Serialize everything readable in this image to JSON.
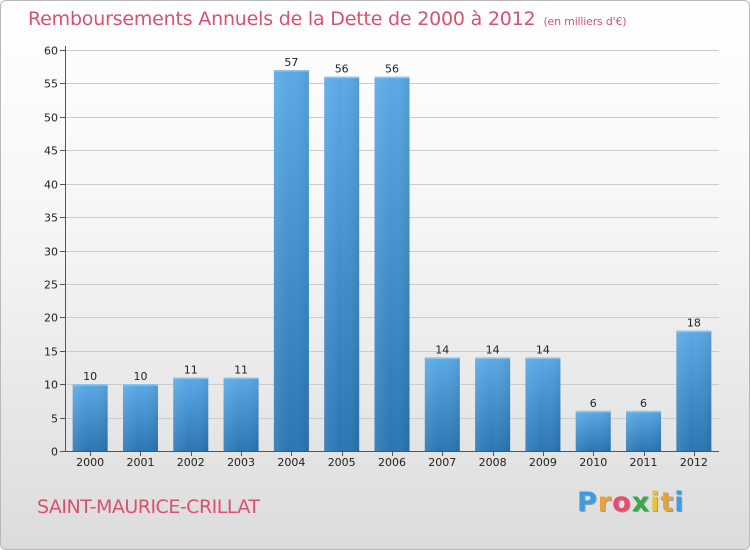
{
  "chart_data": {
    "type": "bar",
    "title": "Remboursements Annuels de la Dette de 2000 à 2012",
    "subtitle": "(en milliers d'€)",
    "categories": [
      "2000",
      "2001",
      "2002",
      "2003",
      "2004",
      "2005",
      "2006",
      "2007",
      "2008",
      "2009",
      "2010",
      "2011",
      "2012"
    ],
    "values": [
      10,
      10,
      11,
      11,
      57,
      56,
      56,
      14,
      14,
      14,
      6,
      6,
      18
    ],
    "ylim": [
      0,
      60
    ],
    "yticks": [
      0,
      5,
      10,
      15,
      20,
      25,
      30,
      35,
      40,
      45,
      50,
      55,
      60
    ],
    "xlabel": "",
    "ylabel": "",
    "grid": true,
    "bar_color_top": "#5aa9e6",
    "bar_color_bottom": "#2a76b4"
  },
  "footer": {
    "town": "SAINT-MAURICE-CRILLAT",
    "logo_letters": [
      "P",
      "r",
      "o",
      "x",
      "i",
      "t",
      "i"
    ],
    "logo_colors": [
      "#3b9ee0",
      "#e8a23a",
      "#e84b6e",
      "#3aa84a",
      "#e8c23a",
      "#e8a23a",
      "#3b9ee0"
    ]
  },
  "colors": {
    "title": "#d9516e",
    "grid": "#cccccc",
    "axis": "#555555"
  }
}
